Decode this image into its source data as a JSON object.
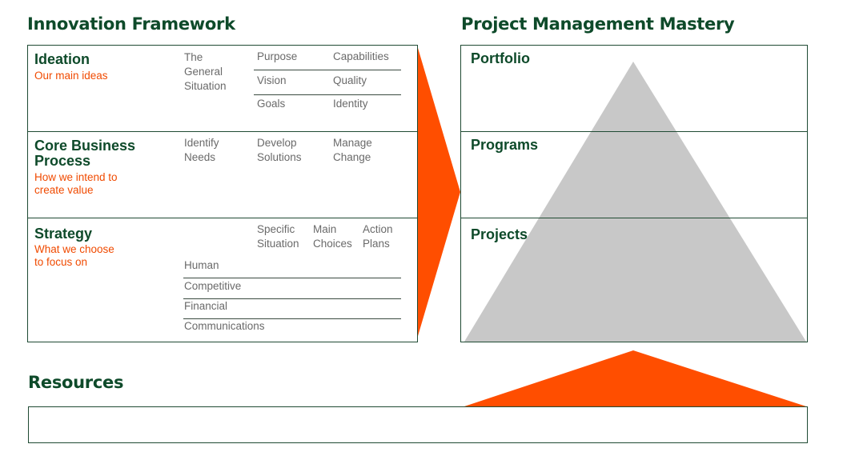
{
  "innovation": {
    "title": "Innovation Framework",
    "ideation": {
      "title": "Ideation",
      "subtitle": "Our main ideas",
      "situation": "The\nGeneral\nSituation",
      "grid": [
        [
          "Purpose",
          "Capabilities"
        ],
        [
          "Vision",
          "Quality"
        ],
        [
          "Goals",
          "Identity"
        ]
      ]
    },
    "core": {
      "title": "Core Business\nProcess",
      "subtitle": "How we intend to\ncreate value",
      "steps": [
        "Identify\nNeeds",
        "Develop\nSolutions",
        "Manage\nChange"
      ]
    },
    "strategy": {
      "title": "Strategy",
      "subtitle": "What we choose\nto focus on",
      "headers": [
        "Specific\nSituation",
        "Main\nChoices",
        "Action\nPlans"
      ],
      "rows": [
        "Human",
        "Competitive",
        "Financial",
        "Communications"
      ]
    }
  },
  "pm": {
    "title": "Project Management Mastery",
    "levels": [
      "Portfolio",
      "Programs",
      "Projects"
    ]
  },
  "resources": {
    "title": "Resources"
  },
  "colors": {
    "green": "#0e4a2a",
    "orange": "#ff4e00",
    "grey_triangle": "#c8c8c8"
  }
}
